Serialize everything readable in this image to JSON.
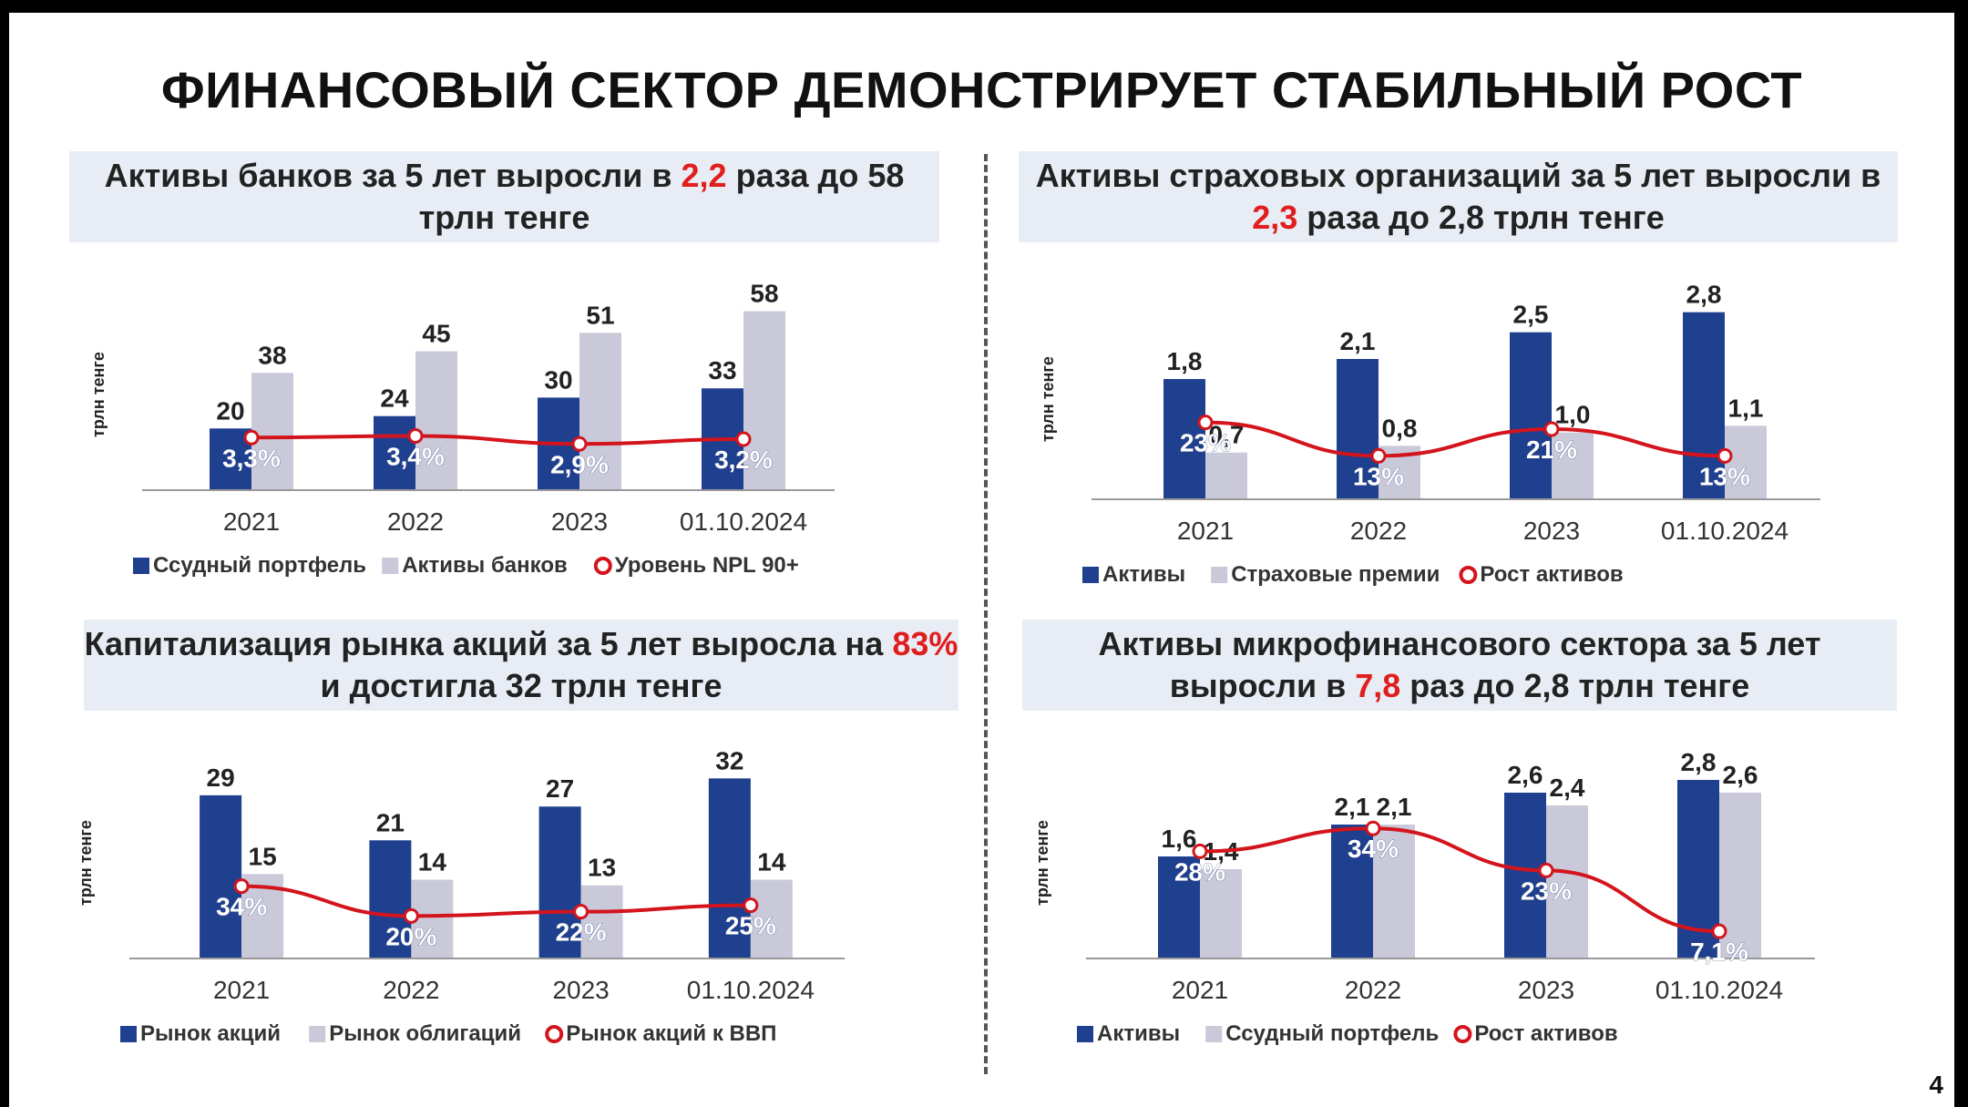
{
  "page": {
    "title": "ФИНАНСОВЫЙ СЕКТОР ДЕМОНСТРИРУЕТ СТАБИЛЬНЫЙ РОСТ",
    "page_number": "4"
  },
  "colors": {
    "primary": "#1f3f8f",
    "secondary": "#c9c9d9",
    "line": "#d4141c",
    "highlight": "#e01e1e",
    "title_bg": "#e8edf5"
  },
  "panels": [
    {
      "title_parts": [
        "Активы банков за 5 лет выросли в ",
        "2,2",
        " раза до 58 трлн тенге"
      ],
      "ylabel": "трлн тенге"
    },
    {
      "title_parts": [
        "Активы страховых организаций за 5 лет выросли в ",
        "2,3",
        " раза до 2,8 трлн тенге"
      ],
      "ylabel": "трлн тенге"
    },
    {
      "title_parts": [
        "Капитализация рынка акций за 5 лет выросла на ",
        "83%",
        " и достигла 32 трлн тенге"
      ],
      "ylabel": "трлн тенге"
    },
    {
      "title_parts": [
        "Активы микрофинансового сектора за 5 лет выросли в ",
        "7,8",
        " раз до 2,8 трлн тенге"
      ],
      "ylabel": "трлн тенге"
    }
  ],
  "chart_data": [
    {
      "type": "bar",
      "categories": [
        "2021",
        "2022",
        "2023",
        "01.10.2024"
      ],
      "ylabel": "трлн тенге",
      "ylim": [
        0,
        62
      ],
      "series": [
        {
          "name": "Ссудный портфель",
          "kind": "bar",
          "values": [
            20,
            24,
            30,
            33
          ],
          "labels": [
            "20",
            "24",
            "30",
            "33"
          ]
        },
        {
          "name": "Активы банков",
          "kind": "bar",
          "values": [
            38,
            45,
            51,
            58
          ],
          "labels": [
            "38",
            "45",
            "51",
            "58"
          ]
        },
        {
          "name": "Уровень NPL 90+",
          "kind": "line",
          "values": [
            3.3,
            3.4,
            2.9,
            3.2
          ],
          "labels": [
            "3,3%",
            "3,4%",
            "2,9%",
            "3,2%"
          ],
          "line_range": [
            0,
            12
          ]
        }
      ],
      "legend": "bottom"
    },
    {
      "type": "bar",
      "categories": [
        "2021",
        "2022",
        "2023",
        "01.10.2024"
      ],
      "ylabel": "трлн тенге",
      "ylim": [
        0,
        3.0
      ],
      "series": [
        {
          "name": "Активы",
          "kind": "bar",
          "values": [
            1.8,
            2.1,
            2.5,
            2.8
          ],
          "labels": [
            "1,8",
            "2,1",
            "2,5",
            "2,8"
          ]
        },
        {
          "name": "Страховые премии",
          "kind": "bar",
          "values": [
            0.7,
            0.8,
            1.0,
            1.1
          ],
          "labels": [
            "0,7",
            "0,8",
            "1,0",
            "1,1"
          ]
        },
        {
          "name": "Рост активов",
          "kind": "line",
          "values": [
            23,
            13,
            21,
            13
          ],
          "labels": [
            "23%",
            "13%",
            "21%",
            "13%"
          ],
          "line_range": [
            0,
            60
          ]
        }
      ],
      "legend": "bottom"
    },
    {
      "type": "bar",
      "categories": [
        "2021",
        "2022",
        "2023",
        "01.10.2024"
      ],
      "ylabel": "трлн тенге",
      "ylim": [
        0,
        34
      ],
      "series": [
        {
          "name": "Рынок акций",
          "kind": "bar",
          "values": [
            29,
            21,
            27,
            32
          ],
          "labels": [
            "29",
            "21",
            "27",
            "32"
          ]
        },
        {
          "name": "Рынок облигаций",
          "kind": "bar",
          "values": [
            15,
            14,
            13,
            14
          ],
          "labels": [
            "15",
            "14",
            "13",
            "14"
          ]
        },
        {
          "name": "Рынок акций к ВВП",
          "kind": "line",
          "values": [
            34,
            20,
            22,
            25
          ],
          "labels": [
            "34%",
            "20%",
            "22%",
            "25%"
          ],
          "line_range": [
            0,
            90
          ]
        }
      ],
      "legend": "bottom"
    },
    {
      "type": "bar",
      "categories": [
        "2021",
        "2022",
        "2023",
        "01.10.2024"
      ],
      "ylabel": "трлн тенге",
      "ylim": [
        0,
        3.0
      ],
      "series": [
        {
          "name": "Активы",
          "kind": "bar",
          "values": [
            1.6,
            2.1,
            2.6,
            2.8
          ],
          "labels": [
            "1,6",
            "2,1",
            "2,6",
            "2,8"
          ]
        },
        {
          "name": "Ссудный портфель",
          "kind": "bar",
          "values": [
            1.4,
            2.1,
            2.4,
            2.6
          ],
          "labels": [
            "1,4",
            "2,1",
            "2,4",
            "2,6"
          ]
        },
        {
          "name": "Рост активов",
          "kind": "line",
          "values": [
            28,
            34,
            23,
            7.1
          ],
          "labels": [
            "28%",
            "34%",
            "23%",
            "7,1%"
          ],
          "line_range": [
            0,
            50
          ]
        }
      ],
      "legend": "bottom"
    }
  ]
}
